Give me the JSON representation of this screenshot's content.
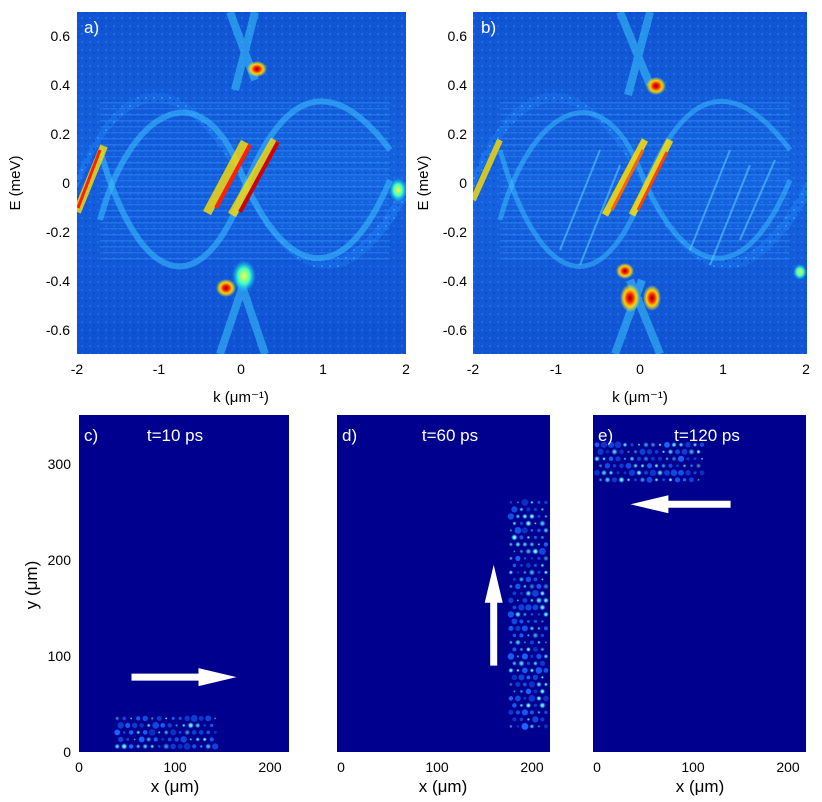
{
  "chart_data": [
    {
      "panel": "a)",
      "type": "heatmap",
      "xlabel": "k (μm⁻¹)",
      "ylabel": "E (meV)",
      "xlim": [
        -2,
        2
      ],
      "ylim": [
        -0.7,
        0.7
      ],
      "xticks": [
        -2,
        -1,
        0,
        1,
        2
      ],
      "yticks": [
        -0.6,
        -0.4,
        -0.2,
        0,
        0.2,
        0.4,
        0.6
      ],
      "colormap": "jet",
      "features": {
        "band_top_envelope_center_meV": 0.38,
        "band_bottom_envelope_center_meV": -0.38,
        "edge_state_slope": "positive",
        "hotspots": [
          {
            "k": 0.18,
            "E": 0.46
          },
          {
            "k": -0.12,
            "E": -0.42
          },
          {
            "k": -1.85,
            "E": 0.1
          }
        ]
      }
    },
    {
      "panel": "b)",
      "type": "heatmap",
      "xlabel": "k (μm⁻¹)",
      "ylabel": "E (meV)",
      "xlim": [
        -2,
        2
      ],
      "ylim": [
        -0.7,
        0.7
      ],
      "xticks": [
        -2,
        -1,
        0,
        1,
        2
      ],
      "yticks": [
        -0.6,
        -0.4,
        -0.2,
        0,
        0.2,
        0.4,
        0.6
      ],
      "colormap": "jet",
      "features": {
        "hotspots": [
          {
            "k": 0.18,
            "E": 0.4
          },
          {
            "k": -0.18,
            "E": -0.36
          },
          {
            "k": -0.1,
            "E": -0.47
          },
          {
            "k": 0.18,
            "E": -0.46
          }
        ]
      }
    },
    {
      "panel": "c)",
      "type": "heatmap",
      "title": "t=10 ps",
      "xlabel": "x (μm)",
      "ylabel": "y (μm)",
      "xlim": [
        0,
        220
      ],
      "ylim": [
        0,
        350
      ],
      "xticks": [
        0,
        100,
        200
      ],
      "yticks": [
        0,
        100,
        200,
        300
      ],
      "packet_region": {
        "x": [
          40,
          145
        ],
        "y": [
          5,
          35
        ]
      },
      "arrow": {
        "direction": "right",
        "from": [
          55,
          78
        ],
        "to": [
          165,
          78
        ]
      }
    },
    {
      "panel": "d)",
      "type": "heatmap",
      "title": "t=60 ps",
      "xlabel": "x (μm)",
      "xlim": [
        0,
        220
      ],
      "ylim": [
        0,
        350
      ],
      "xticks": [
        0,
        100,
        200
      ],
      "packet_region": {
        "x": [
          178,
          215
        ],
        "y": [
          20,
          260
        ]
      },
      "arrow": {
        "direction": "up",
        "from": [
          160,
          90
        ],
        "to": [
          160,
          195
        ]
      }
    },
    {
      "panel": "e)",
      "type": "heatmap",
      "title": "t=120 ps",
      "xlabel": "x (μm)",
      "xlim": [
        0,
        220
      ],
      "ylim": [
        0,
        350
      ],
      "xticks": [
        0,
        100,
        200
      ],
      "packet_region": {
        "x": [
          0,
          110
        ],
        "y": [
          280,
          320
        ]
      },
      "arrow": {
        "direction": "left",
        "from": [
          140,
          258
        ],
        "to": [
          35,
          258
        ]
      }
    }
  ],
  "colors": {
    "background_low": "#00008f",
    "arrow": "#ffffff"
  }
}
